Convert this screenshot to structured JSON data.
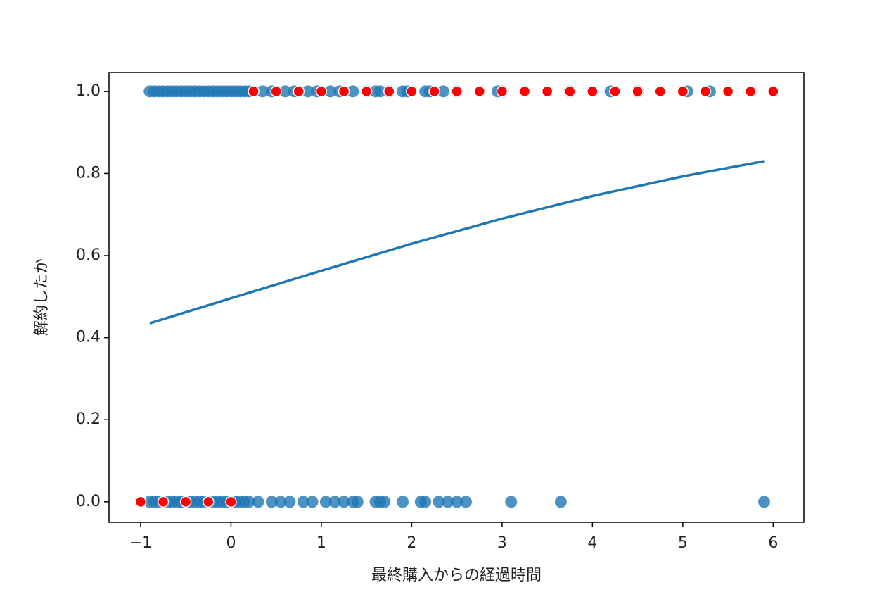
{
  "chart_data": {
    "type": "scatter",
    "xlabel": "最終購入からの経過時間",
    "ylabel": "解約したか",
    "xlim": [
      -1.35,
      6.34
    ],
    "ylim": [
      -0.05,
      1.046
    ],
    "xticks": [
      {
        "value": -1,
        "label": "−1"
      },
      0,
      1,
      2,
      3,
      4,
      5,
      6
    ],
    "yticks": [
      {
        "value": 0,
        "label": "0.0"
      },
      {
        "value": 0.2,
        "label": "0.2"
      },
      {
        "value": 0.4,
        "label": "0.4"
      },
      {
        "value": 0.6,
        "label": "0.6"
      },
      {
        "value": 0.8,
        "label": "0.8"
      },
      {
        "value": 1,
        "label": "1.0"
      }
    ],
    "series": [
      {
        "type": "scatter",
        "color": "#1f77b4",
        "x": [
          -0.9,
          -0.85,
          -0.8,
          -0.75,
          -0.7,
          -0.65,
          -0.6,
          -0.55,
          -0.5,
          -0.45,
          -0.4,
          -0.35,
          -0.3,
          -0.25,
          -0.2,
          -0.15,
          -0.1,
          -0.05,
          0,
          0.05,
          0.1,
          0.15,
          0.2,
          0.35,
          0.45,
          0.6,
          0.7,
          0.85,
          0.95,
          1.1,
          1.2,
          1.35,
          1.5,
          1.6,
          1.65,
          1.75,
          1.9,
          1.95,
          2.15,
          2.2,
          2.35,
          2.5,
          2.95,
          3.0,
          3.75,
          4.2,
          4.5,
          5.05,
          5.3,
          -0.9,
          -0.85,
          -0.8,
          -0.75,
          -0.7,
          -0.65,
          -0.6,
          -0.55,
          -0.5,
          -0.45,
          -0.4,
          -0.35,
          -0.3,
          -0.25,
          -0.2,
          -0.15,
          -0.1,
          -0.05,
          0,
          0.05,
          0.1,
          0.15,
          0.2,
          0.3,
          0.45,
          0.55,
          0.65,
          0.8,
          0.9,
          1.05,
          1.15,
          1.25,
          1.35,
          1.4,
          1.6,
          1.65,
          1.7,
          1.9,
          2.1,
          2.15,
          2.3,
          2.4,
          2.5,
          2.6,
          3.1,
          3.65,
          5.9
        ],
        "values": [
          1,
          1,
          1,
          1,
          1,
          1,
          1,
          1,
          1,
          1,
          1,
          1,
          1,
          1,
          1,
          1,
          1,
          1,
          1,
          1,
          1,
          1,
          1,
          1,
          1,
          1,
          1,
          1,
          1,
          1,
          1,
          1,
          1,
          1,
          1,
          1,
          1,
          1,
          1,
          1,
          1,
          1,
          1,
          1,
          1,
          1,
          1,
          1,
          1,
          0,
          0,
          0,
          0,
          0,
          0,
          0,
          0,
          0,
          0,
          0,
          0,
          0,
          0,
          0,
          0,
          0,
          0,
          0,
          0,
          0,
          0,
          0,
          0,
          0,
          0,
          0,
          0,
          0,
          0,
          0,
          0,
          0,
          0,
          0,
          0,
          0,
          0,
          0,
          0,
          0,
          0,
          0,
          0,
          0,
          0,
          0
        ]
      },
      {
        "type": "line",
        "color": "#1f77b4",
        "x": [
          -0.9,
          0,
          1,
          2,
          3,
          4,
          5,
          5.9
        ],
        "values": [
          0.435,
          0.496,
          0.563,
          0.629,
          0.69,
          0.745,
          0.793,
          0.83
        ]
      },
      {
        "type": "scatter",
        "color": "red",
        "x": [
          -1,
          -0.75,
          -0.5,
          -0.25,
          0,
          0.25,
          0.5,
          0.75,
          1,
          1.25,
          1.5,
          1.75,
          2,
          2.25,
          2.5,
          2.75,
          3,
          3.25,
          3.5,
          3.75,
          4,
          4.25,
          4.5,
          4.75,
          5,
          5.25,
          5.5,
          5.75,
          6
        ],
        "values": [
          0,
          0,
          0,
          0,
          0,
          1,
          1,
          1,
          1,
          1,
          1,
          1,
          1,
          1,
          1,
          1,
          1,
          1,
          1,
          1,
          1,
          1,
          1,
          1,
          1,
          1,
          1,
          1,
          1
        ]
      }
    ]
  }
}
